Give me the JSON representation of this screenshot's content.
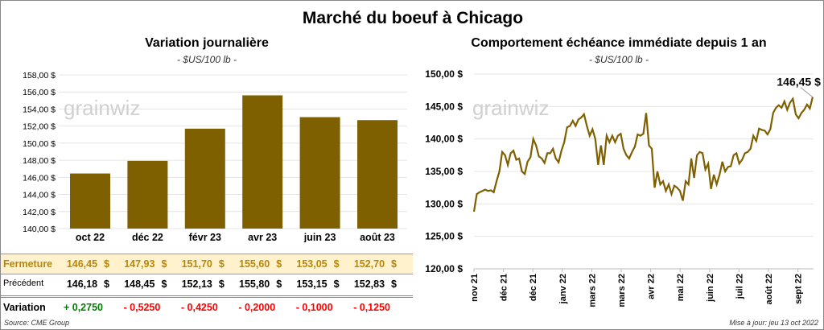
{
  "title": "Marché du boeuf à Chicago",
  "colors": {
    "bar": "#7f6000",
    "line": "#7f6000",
    "fermeture_bg": "#fff2cc",
    "fermeture_text": "#b8860b",
    "positive": "#008000",
    "negative": "#ff0000"
  },
  "watermark": "grainwiz",
  "chart_data": [
    {
      "type": "bar",
      "title": "Variation journalière",
      "subtitle": "- $US/100 lb -",
      "categories": [
        "oct 22",
        "déc 22",
        "févr 23",
        "avr 23",
        "juin 23",
        "août 23"
      ],
      "values": [
        146.45,
        147.93,
        151.7,
        155.6,
        153.05,
        152.7
      ],
      "ylim": [
        140,
        158
      ],
      "yticks": [
        "140,00 $",
        "142,00 $",
        "144,00 $",
        "146,00 $",
        "148,00 $",
        "150,00 $",
        "152,00 $",
        "154,00 $",
        "156,00 $",
        "158,00 $"
      ],
      "grid": true
    },
    {
      "type": "line",
      "title": "Comportement échéance immédiate depuis 1 an",
      "subtitle": "- $US/100 lb -",
      "xticks": [
        "nov 21",
        "déc 21",
        "déc 21",
        "janv 22",
        "mars 22",
        "mars 22",
        "avr 22",
        "mai 22",
        "juin 22",
        "juil 22",
        "août 22",
        "sept 22"
      ],
      "ylim": [
        120,
        150
      ],
      "yticks": [
        "120,00 $",
        "125,00 $",
        "130,00 $",
        "135,00 $",
        "140,00 $",
        "145,00 $",
        "150,00 $"
      ],
      "last_label": "146,45 $",
      "grid": true,
      "values": [
        128.8,
        131.5,
        131.8,
        132,
        132.2,
        132,
        132.1,
        131.8,
        133.5,
        135,
        138,
        137.5,
        136,
        137.8,
        138.2,
        136.8,
        137,
        135,
        134.6,
        136.5,
        137.2,
        140,
        139,
        137.3,
        137,
        136.3,
        137.8,
        137.8,
        138.5,
        137,
        136.4,
        138.2,
        139.5,
        141.8,
        142,
        142.8,
        142,
        143,
        143.3,
        143.8,
        142,
        140.5,
        141.5,
        140,
        136,
        139,
        136,
        140.5,
        139.5,
        140.5,
        139.5,
        140.5,
        140.8,
        138.5,
        137.5,
        137,
        138,
        138.8,
        140.7,
        140.5,
        140.8,
        144,
        139,
        138.5,
        132.5,
        135,
        133,
        133.5,
        132,
        133,
        131.5,
        132.8,
        132.5,
        132,
        130.5,
        133.5,
        133,
        137,
        134,
        137.5,
        138,
        137.8,
        135.3,
        136.2,
        132.3,
        134.5,
        133,
        134.5,
        136.5,
        135,
        135.7,
        135.8,
        137.5,
        137.8,
        136.2,
        136.8,
        137.8,
        138,
        138.5,
        140.5,
        139.7,
        141.6,
        141.4,
        141.3,
        140.7,
        141.5,
        144,
        144.8,
        145.2,
        144.8,
        145.8,
        144.5,
        145.6,
        146.2,
        143.8,
        143.2,
        144,
        144.5,
        145.3,
        144.7,
        146.45
      ]
    }
  ],
  "table": {
    "rows": [
      {
        "label": "Fermeture",
        "values": [
          "146,45",
          "147,93",
          "151,70",
          "155,60",
          "153,05",
          "152,70"
        ],
        "suffix": "$"
      },
      {
        "label": "Précédent",
        "values": [
          "146,18",
          "148,45",
          "152,13",
          "155,80",
          "153,15",
          "152,83"
        ],
        "suffix": "$"
      },
      {
        "label": "Variation",
        "values": [
          "+ 0,2750",
          "- 0,5250",
          "- 0,4250",
          "- 0,2000",
          "- 0,1000",
          "- 0,1250"
        ]
      }
    ]
  },
  "source": "Source: CME Group",
  "updated": "Mise à jour: jeu 13 oct 2022"
}
